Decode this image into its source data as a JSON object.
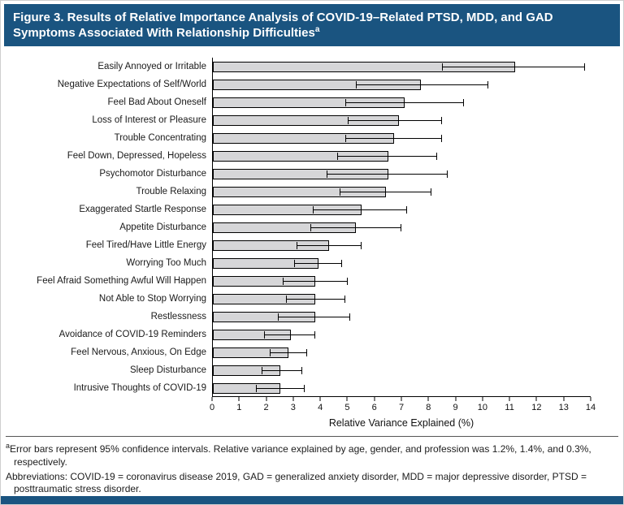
{
  "header": {
    "title": "Figure 3. Results of Relative Importance Analysis of COVID-19–Related PTSD, MDD, and GAD Symptoms Associated With Relationship Difficulties",
    "title_superscript": "a"
  },
  "chart_data": {
    "type": "bar",
    "orientation": "horizontal",
    "title": "Results of Relative Importance Analysis of COVID-19–Related PTSD, MDD, and GAD Symptoms Associated With Relationship Difficulties",
    "categories": [
      "Easily Annoyed or Irritable",
      "Negative Expectations of Self/World",
      "Feel Bad About Oneself",
      "Loss of Interest or Pleasure",
      "Trouble Concentrating",
      "Feel Down, Depressed, Hopeless",
      "Psychomotor Disturbance",
      "Trouble Relaxing",
      "Exaggerated Startle Response",
      "Appetite Disturbance",
      "Feel Tired/Have Little Energy",
      "Worrying Too Much",
      "Feel Afraid Something Awful Will Happen",
      "Not Able to Stop Worrying",
      "Restlessness",
      "Avoidance of COVID-19 Reminders",
      "Feel Nervous, Anxious, On Edge",
      "Sleep Disturbance",
      "Intrusive Thoughts of COVID-19"
    ],
    "values": [
      11.2,
      7.7,
      7.1,
      6.9,
      6.7,
      6.5,
      6.5,
      6.4,
      5.5,
      5.3,
      4.3,
      3.9,
      3.8,
      3.8,
      3.8,
      2.9,
      2.8,
      2.5,
      2.5
    ],
    "ci_low": [
      8.5,
      5.3,
      4.9,
      5.0,
      4.9,
      4.6,
      4.2,
      4.7,
      3.7,
      3.6,
      3.1,
      3.0,
      2.6,
      2.7,
      2.4,
      1.9,
      2.1,
      1.8,
      1.6
    ],
    "ci_high": [
      13.8,
      10.2,
      9.3,
      8.5,
      8.5,
      8.3,
      8.7,
      8.1,
      7.2,
      7.0,
      5.5,
      4.8,
      5.0,
      4.9,
      5.1,
      3.8,
      3.5,
      3.3,
      3.4
    ],
    "xlabel": "Relative Variance Explained (%)",
    "ylabel": "",
    "xlim": [
      0,
      14
    ],
    "xticks": [
      0,
      1,
      2,
      3,
      4,
      5,
      6,
      7,
      8,
      9,
      10,
      11,
      12,
      13,
      14
    ],
    "grid": false,
    "error_bars": "95% confidence intervals",
    "bar_color": "#d6d6d8",
    "bar_border_color": "#000000",
    "legend_position": "none"
  },
  "footnotes": {
    "a_superscript": "a",
    "a_text": "Error bars represent 95% confidence intervals. Relative variance explained by age, gender, and profession was 1.2%, 1.4%, and 0.3%, respectively.",
    "abbreviations": "Abbreviations: COVID-19 = coronavirus disease 2019, GAD = generalized anxiety disorder, MDD = major depressive disorder, PTSD = posttraumatic stress disorder."
  },
  "colors": {
    "banner_background": "#1a5480",
    "banner_text": "#ffffff",
    "bottom_bar": "#1a5480"
  }
}
